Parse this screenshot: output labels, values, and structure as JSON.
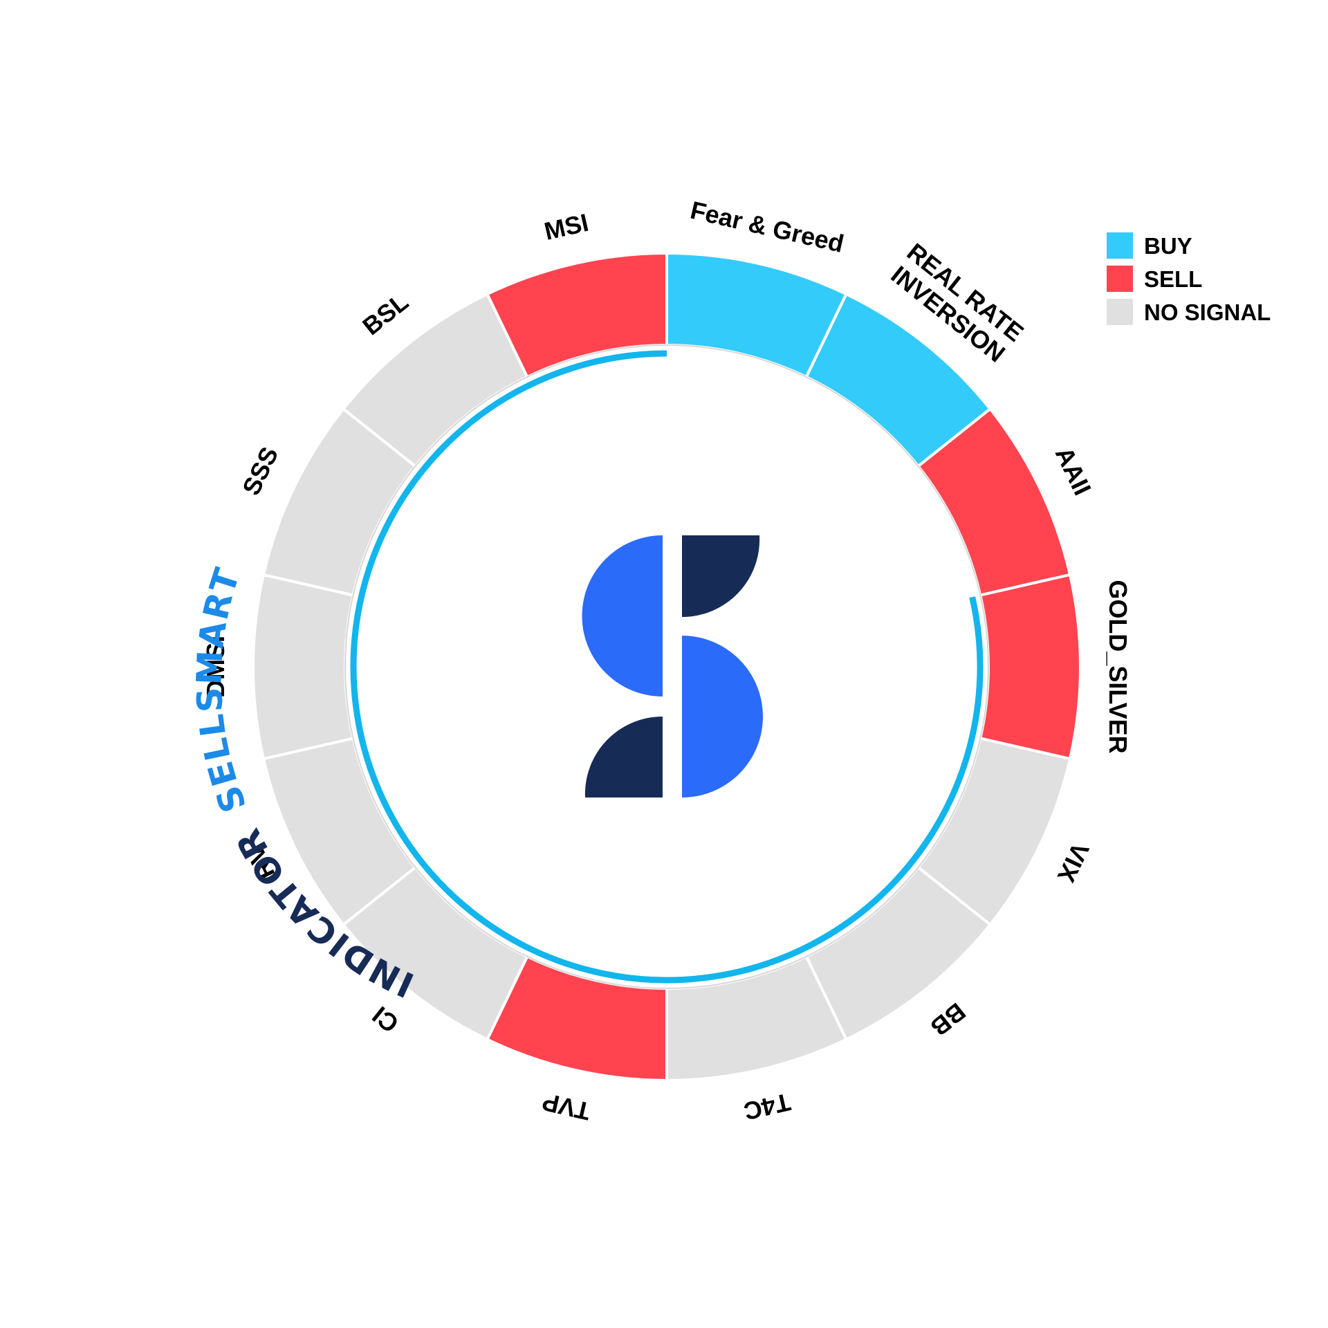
{
  "colors": {
    "buy": "#33cbfa",
    "sell": "#ff4450",
    "no_signal": "#e0e0e0",
    "ring_outline": "#d7d7d7",
    "inner_arc": "#12b5ec",
    "logo_light": "#2a6bfa",
    "logo_dark": "#172b57",
    "text_sellsmart": "#1c8ae8",
    "text_indicator": "#172b57"
  },
  "legend": [
    {
      "key": "buy",
      "label": "BUY"
    },
    {
      "key": "sell",
      "label": "SELL"
    },
    {
      "key": "no_signal",
      "label": "NO SIGNAL"
    }
  ],
  "title_arc": {
    "part1": "SELLSMART",
    "part2": "INDICATOR"
  },
  "logo": {
    "icon": "sellsmart-s-logo-icon"
  },
  "chart_data": {
    "type": "pie",
    "variant": "donut",
    "title": "",
    "arc_progress_segments": 11,
    "categories": [
      "Fear & Greed",
      "REAL RATE INVERSION",
      "AAII",
      "GOLD_SILVER",
      "VIX",
      "BB",
      "T4C",
      "TVP",
      "CI",
      "RV",
      "DMSI",
      "SSS",
      "BSL",
      "MSI"
    ],
    "label_lines": [
      [
        "Fear & Greed"
      ],
      [
        "REAL RATE",
        "INVERSION"
      ],
      [
        "AAII"
      ],
      [
        "GOLD_SILVER"
      ],
      [
        "VIX"
      ],
      [
        "BB"
      ],
      [
        "T4C"
      ],
      [
        "TVP"
      ],
      [
        "CI"
      ],
      [
        "RV"
      ],
      [
        "DMSI"
      ],
      [
        "SSS"
      ],
      [
        "BSL"
      ],
      [
        "MSI"
      ]
    ],
    "values": [
      1,
      1,
      1,
      1,
      1,
      1,
      1,
      1,
      1,
      1,
      1,
      1,
      1,
      1
    ],
    "signals": [
      "buy",
      "buy",
      "sell",
      "sell",
      "no_signal",
      "no_signal",
      "no_signal",
      "sell",
      "no_signal",
      "no_signal",
      "no_signal",
      "no_signal",
      "no_signal",
      "sell"
    ],
    "legend_position": "top-right"
  }
}
